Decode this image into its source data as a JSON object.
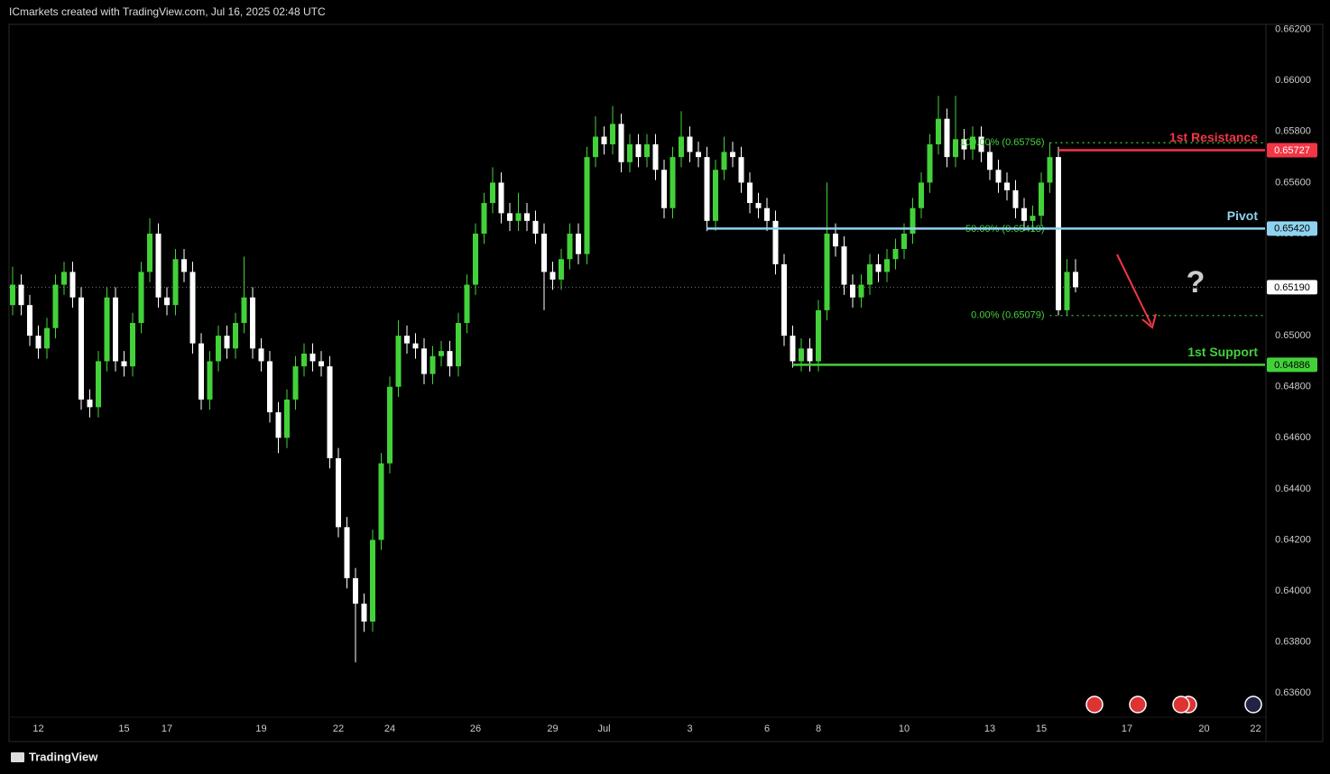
{
  "header": "ICmarkets created with TradingView.com, Jul 16, 2025 02:48 UTC",
  "footer": "TradingView",
  "chart_data": {
    "type": "candlestick",
    "up_color": "#43d13a",
    "down_color": "#ffffff",
    "ylim": [
      0.6341,
      0.6622
    ],
    "yticks": [
      {
        "value": 0.662,
        "label": "0.66200"
      },
      {
        "value": 0.66,
        "label": "0.66000"
      },
      {
        "value": 0.658,
        "label": "0.65800"
      },
      {
        "value": 0.656,
        "label": "0.65600"
      },
      {
        "value": 0.654,
        "label": "0.65400"
      },
      {
        "value": 0.652,
        "label": "0.65200"
      },
      {
        "value": 0.65,
        "label": "0.65000"
      },
      {
        "value": 0.648,
        "label": "0.64800"
      },
      {
        "value": 0.646,
        "label": "0.64600"
      },
      {
        "value": 0.644,
        "label": "0.64400"
      },
      {
        "value": 0.642,
        "label": "0.64200"
      },
      {
        "value": 0.64,
        "label": "0.64000"
      },
      {
        "value": 0.638,
        "label": "0.63800"
      },
      {
        "value": 0.636,
        "label": "0.63600"
      }
    ],
    "categories": [
      null,
      null,
      null,
      "12",
      null,
      null,
      null,
      null,
      null,
      null,
      null,
      null,
      null,
      "15",
      null,
      null,
      null,
      null,
      "17",
      null,
      null,
      null,
      null,
      null,
      null,
      null,
      null,
      null,
      null,
      "19",
      null,
      null,
      null,
      null,
      null,
      null,
      null,
      null,
      "22",
      null,
      null,
      null,
      null,
      null,
      "24",
      null,
      null,
      null,
      null,
      null,
      null,
      null,
      null,
      null,
      "26",
      null,
      null,
      null,
      null,
      null,
      null,
      null,
      null,
      "29",
      null,
      null,
      null,
      null,
      null,
      "Jul",
      null,
      null,
      null,
      null,
      null,
      null,
      null,
      null,
      null,
      "3",
      null,
      null,
      null,
      null,
      null,
      null,
      null,
      null,
      "6",
      null,
      null,
      null,
      null,
      null,
      "8",
      null,
      null,
      null,
      null,
      null,
      null,
      null,
      null,
      null,
      "10",
      null,
      null,
      null,
      null,
      null,
      null,
      null,
      null,
      null,
      "13",
      null,
      null,
      null,
      null,
      null,
      "15",
      null,
      null,
      null,
      null,
      null,
      null,
      null,
      null,
      null,
      "17",
      null,
      null,
      null,
      null,
      null,
      null,
      null,
      null,
      "20",
      null,
      null,
      null,
      null,
      null,
      "22"
    ],
    "ohlc": [
      [
        0.6512,
        0.6527,
        0.6508,
        0.652
      ],
      [
        0.652,
        0.6524,
        0.6508,
        0.6512
      ],
      [
        0.6512,
        0.6516,
        0.6496,
        0.65
      ],
      [
        0.65,
        0.6504,
        0.6491,
        0.6495
      ],
      [
        0.6495,
        0.6507,
        0.6491,
        0.6503
      ],
      [
        0.6503,
        0.6524,
        0.6499,
        0.652
      ],
      [
        0.652,
        0.6529,
        0.6516,
        0.6525
      ],
      [
        0.6525,
        0.6529,
        0.6511,
        0.6515
      ],
      [
        0.6515,
        0.6519,
        0.6471,
        0.6475
      ],
      [
        0.6475,
        0.6479,
        0.6468,
        0.6472
      ],
      [
        0.6472,
        0.6494,
        0.6468,
        0.649
      ],
      [
        0.649,
        0.6519,
        0.6486,
        0.6515
      ],
      [
        0.6515,
        0.6519,
        0.6486,
        0.649
      ],
      [
        0.649,
        0.6494,
        0.6484,
        0.6488
      ],
      [
        0.6488,
        0.6509,
        0.6484,
        0.6505
      ],
      [
        0.6505,
        0.6529,
        0.6501,
        0.6525
      ],
      [
        0.6525,
        0.6546,
        0.6521,
        0.654
      ],
      [
        0.654,
        0.6544,
        0.6511,
        0.6515
      ],
      [
        0.6515,
        0.6519,
        0.6508,
        0.6512
      ],
      [
        0.6512,
        0.6534,
        0.6508,
        0.653
      ],
      [
        0.653,
        0.6534,
        0.6521,
        0.6525
      ],
      [
        0.6525,
        0.6529,
        0.6493,
        0.6497
      ],
      [
        0.6497,
        0.6501,
        0.6471,
        0.6475
      ],
      [
        0.6475,
        0.6494,
        0.6471,
        0.649
      ],
      [
        0.649,
        0.6504,
        0.6486,
        0.65
      ],
      [
        0.65,
        0.6504,
        0.6491,
        0.6495
      ],
      [
        0.6495,
        0.6509,
        0.6491,
        0.6505
      ],
      [
        0.6505,
        0.6531,
        0.6501,
        0.6515
      ],
      [
        0.6515,
        0.6519,
        0.6491,
        0.6495
      ],
      [
        0.6495,
        0.6499,
        0.6486,
        0.649
      ],
      [
        0.649,
        0.6494,
        0.6466,
        0.647
      ],
      [
        0.647,
        0.6474,
        0.6454,
        0.646
      ],
      [
        0.646,
        0.6479,
        0.6456,
        0.6475
      ],
      [
        0.6475,
        0.6492,
        0.6471,
        0.6488
      ],
      [
        0.6488,
        0.6497,
        0.6484,
        0.6493
      ],
      [
        0.6493,
        0.6497,
        0.6486,
        0.649
      ],
      [
        0.649,
        0.6494,
        0.6484,
        0.6488
      ],
      [
        0.6488,
        0.6492,
        0.6448,
        0.6452
      ],
      [
        0.6452,
        0.6456,
        0.6421,
        0.6425
      ],
      [
        0.6425,
        0.6429,
        0.6401,
        0.6405
      ],
      [
        0.6405,
        0.6409,
        0.6372,
        0.6395
      ],
      [
        0.6395,
        0.6399,
        0.6384,
        0.6388
      ],
      [
        0.6388,
        0.6424,
        0.6384,
        0.642
      ],
      [
        0.642,
        0.6454,
        0.6416,
        0.645
      ],
      [
        0.645,
        0.6484,
        0.6446,
        0.648
      ],
      [
        0.648,
        0.6506,
        0.6476,
        0.65
      ],
      [
        0.65,
        0.6504,
        0.6493,
        0.6497
      ],
      [
        0.6497,
        0.6501,
        0.6491,
        0.6495
      ],
      [
        0.6495,
        0.6499,
        0.6481,
        0.6485
      ],
      [
        0.6485,
        0.6496,
        0.6481,
        0.6492
      ],
      [
        0.6492,
        0.6498,
        0.6488,
        0.6494
      ],
      [
        0.6494,
        0.6498,
        0.6484,
        0.6488
      ],
      [
        0.6488,
        0.6509,
        0.6484,
        0.6505
      ],
      [
        0.6505,
        0.6524,
        0.6501,
        0.652
      ],
      [
        0.652,
        0.6544,
        0.6516,
        0.654
      ],
      [
        0.654,
        0.6556,
        0.6536,
        0.6552
      ],
      [
        0.6552,
        0.6566,
        0.6548,
        0.656
      ],
      [
        0.656,
        0.6564,
        0.6544,
        0.6548
      ],
      [
        0.6548,
        0.6552,
        0.6541,
        0.6545
      ],
      [
        0.6545,
        0.6556,
        0.6541,
        0.6548
      ],
      [
        0.6548,
        0.6552,
        0.6541,
        0.6545
      ],
      [
        0.6545,
        0.6549,
        0.6536,
        0.654
      ],
      [
        0.654,
        0.6544,
        0.651,
        0.6525
      ],
      [
        0.6525,
        0.6529,
        0.6518,
        0.6522
      ],
      [
        0.6522,
        0.6534,
        0.6518,
        0.653
      ],
      [
        0.653,
        0.6544,
        0.6526,
        0.654
      ],
      [
        0.654,
        0.6544,
        0.6528,
        0.6532
      ],
      [
        0.6532,
        0.6574,
        0.6528,
        0.657
      ],
      [
        0.657,
        0.6586,
        0.6566,
        0.6578
      ],
      [
        0.6578,
        0.6582,
        0.6571,
        0.6575
      ],
      [
        0.6575,
        0.659,
        0.6571,
        0.6583
      ],
      [
        0.6583,
        0.6587,
        0.6564,
        0.6568
      ],
      [
        0.6568,
        0.6579,
        0.6564,
        0.6575
      ],
      [
        0.6575,
        0.6579,
        0.6566,
        0.657
      ],
      [
        0.657,
        0.6579,
        0.6566,
        0.6575
      ],
      [
        0.6575,
        0.6579,
        0.6561,
        0.6565
      ],
      [
        0.6565,
        0.6569,
        0.6546,
        0.655
      ],
      [
        0.655,
        0.6574,
        0.6546,
        0.657
      ],
      [
        0.657,
        0.6588,
        0.6566,
        0.6578
      ],
      [
        0.6578,
        0.6582,
        0.6568,
        0.6572
      ],
      [
        0.6572,
        0.6576,
        0.6566,
        0.657
      ],
      [
        0.657,
        0.6574,
        0.6541,
        0.6545
      ],
      [
        0.6545,
        0.6569,
        0.6541,
        0.6565
      ],
      [
        0.6565,
        0.6578,
        0.6561,
        0.6572
      ],
      [
        0.6572,
        0.6576,
        0.6566,
        0.657
      ],
      [
        0.657,
        0.6574,
        0.6556,
        0.656
      ],
      [
        0.656,
        0.6564,
        0.6548,
        0.6552
      ],
      [
        0.6552,
        0.6556,
        0.6546,
        0.655
      ],
      [
        0.655,
        0.6554,
        0.6541,
        0.6545
      ],
      [
        0.6545,
        0.6549,
        0.6524,
        0.6528
      ],
      [
        0.6528,
        0.6532,
        0.6496,
        0.65
      ],
      [
        0.65,
        0.6504,
        0.64875,
        0.649
      ],
      [
        0.649,
        0.6499,
        0.6486,
        0.6495
      ],
      [
        0.6495,
        0.6499,
        0.6486,
        0.649
      ],
      [
        0.649,
        0.6514,
        0.6486,
        0.651
      ],
      [
        0.651,
        0.656,
        0.6506,
        0.654
      ],
      [
        0.654,
        0.6544,
        0.6531,
        0.6535
      ],
      [
        0.6535,
        0.6539,
        0.6516,
        0.652
      ],
      [
        0.652,
        0.6524,
        0.6511,
        0.6515
      ],
      [
        0.6515,
        0.6524,
        0.6511,
        0.652
      ],
      [
        0.652,
        0.6532,
        0.6516,
        0.6528
      ],
      [
        0.6528,
        0.6532,
        0.6521,
        0.6525
      ],
      [
        0.6525,
        0.6534,
        0.6521,
        0.653
      ],
      [
        0.653,
        0.6538,
        0.6526,
        0.6534
      ],
      [
        0.6534,
        0.6544,
        0.653,
        0.654
      ],
      [
        0.654,
        0.6554,
        0.6536,
        0.655
      ],
      [
        0.655,
        0.6564,
        0.6546,
        0.656
      ],
      [
        0.656,
        0.6579,
        0.6556,
        0.6575
      ],
      [
        0.6575,
        0.6594,
        0.6571,
        0.6585
      ],
      [
        0.6585,
        0.6589,
        0.6566,
        0.657
      ],
      [
        0.657,
        0.6594,
        0.6566,
        0.6577
      ],
      [
        0.6577,
        0.6581,
        0.6569,
        0.6573
      ],
      [
        0.6573,
        0.6582,
        0.6569,
        0.6578
      ],
      [
        0.6578,
        0.6582,
        0.6568,
        0.6572
      ],
      [
        0.6572,
        0.6576,
        0.6561,
        0.6565
      ],
      [
        0.6565,
        0.6569,
        0.6556,
        0.656
      ],
      [
        0.656,
        0.6564,
        0.6553,
        0.6557
      ],
      [
        0.6557,
        0.6561,
        0.6546,
        0.655
      ],
      [
        0.655,
        0.6554,
        0.6541,
        0.6545
      ],
      [
        0.6545,
        0.6551,
        0.6541,
        0.6547
      ],
      [
        0.6547,
        0.6564,
        0.6543,
        0.656
      ],
      [
        0.656,
        0.65756,
        0.6556,
        0.657
      ],
      [
        0.657,
        0.6574,
        0.65079,
        0.651
      ],
      [
        0.651,
        0.653,
        0.6508,
        0.6525
      ],
      [
        0.6525,
        0.653,
        0.6517,
        0.6519
      ],
      null,
      null,
      null,
      null,
      null,
      null,
      null,
      null,
      null,
      null,
      null,
      null,
      null,
      null,
      null,
      null,
      null,
      null,
      null,
      null,
      null
    ],
    "current_price": {
      "value": 0.6519,
      "label": "0.65190"
    },
    "levels": [
      {
        "name": "1st Resistance",
        "color": "#f23645",
        "price": {
          "value": 0.65727,
          "label": "0.65727"
        }
      },
      {
        "name": "Pivot",
        "color": "#8fd3f0",
        "price": {
          "value": 0.6542,
          "label": "0.65420"
        }
      },
      {
        "name": "1st Support",
        "color": "#43d13a",
        "price": {
          "value": 0.64886,
          "label": "0.64886"
        }
      }
    ],
    "fib_levels": [
      {
        "label": "100.00% (0.65756)",
        "value": 0.65756
      },
      {
        "label": "50.00% (0.65418)",
        "value": 0.65418
      },
      {
        "label": "0.00% (0.65079)",
        "value": 0.65079
      }
    ],
    "fib_color": "#43d13a",
    "annotation": "?"
  }
}
